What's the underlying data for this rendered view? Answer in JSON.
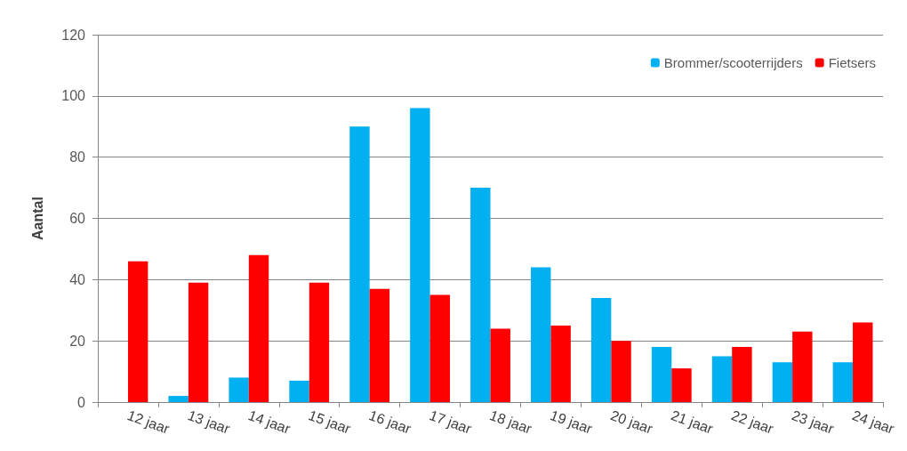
{
  "chart_data": {
    "type": "bar",
    "ylabel": "Aantal",
    "categories": [
      "12 jaar",
      "13 jaar",
      "14 jaar",
      "15 jaar",
      "16 jaar",
      "17 jaar",
      "18 jaar",
      "19 jaar",
      "20 jaar",
      "21 jaar",
      "22 jaar",
      "23 jaar",
      "24 jaar"
    ],
    "series": [
      {
        "name": "Brommer/scooterrijders",
        "color": "#00b0f0",
        "values": [
          0,
          2,
          8,
          7,
          90,
          96,
          70,
          44,
          34,
          18,
          15,
          13,
          13
        ]
      },
      {
        "name": "Fietsers",
        "color": "#ff0000",
        "values": [
          46,
          39,
          48,
          39,
          37,
          35,
          24,
          25,
          20,
          11,
          18,
          23,
          26
        ]
      }
    ],
    "ylim": [
      0,
      120
    ],
    "yticks": [
      0,
      20,
      40,
      60,
      80,
      100,
      120
    ],
    "grid": "y",
    "legend": "top right"
  }
}
